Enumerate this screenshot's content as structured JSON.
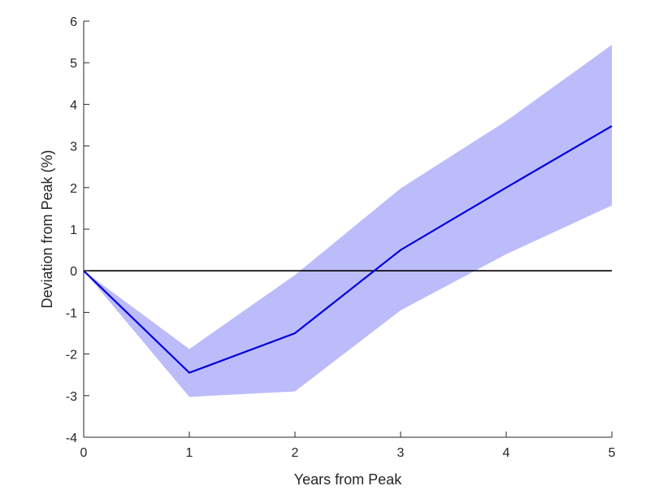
{
  "chart_data": {
    "type": "line",
    "title": "",
    "xlabel": "Years from Peak",
    "ylabel": "Deviation from Peak (%)",
    "xlim": [
      0,
      5
    ],
    "ylim": [
      -4,
      6
    ],
    "xticks": [
      0,
      1,
      2,
      3,
      4,
      5
    ],
    "yticks": [
      -4,
      -3,
      -2,
      -1,
      0,
      1,
      2,
      3,
      4,
      5,
      6
    ],
    "grid": false,
    "legend": "none",
    "reference_line": {
      "y": 0,
      "color": "#000000"
    },
    "series": [
      {
        "x": [
          0,
          1,
          2,
          3,
          4,
          5
        ],
        "y": [
          0,
          -2.45,
          -1.5,
          0.5,
          2.0,
          3.48
        ],
        "color": "#0000e0"
      }
    ],
    "band": {
      "x": [
        0,
        1,
        2,
        3,
        4,
        5
      ],
      "lower": [
        0,
        -3.03,
        -2.9,
        -0.95,
        0.4,
        1.57
      ],
      "upper": [
        0,
        -1.88,
        -0.1,
        1.98,
        3.6,
        5.43
      ],
      "color": "#bcbcfb"
    }
  }
}
